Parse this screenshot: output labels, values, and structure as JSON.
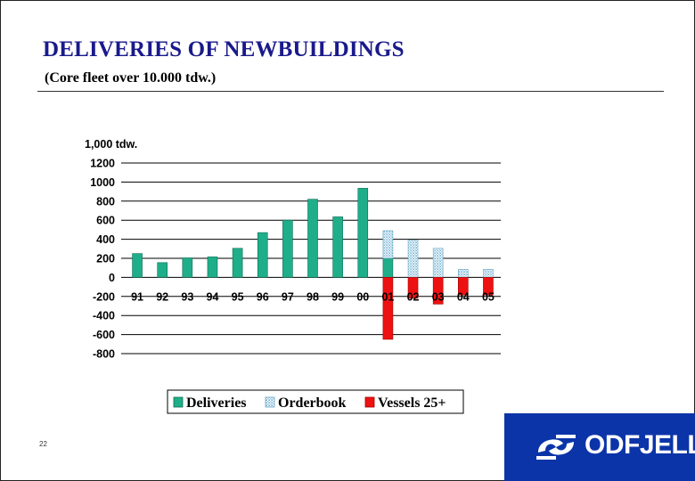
{
  "page": {
    "title": "DELIVERIES OF NEWBUILDINGS",
    "subtitle": "(Core fleet over 10.000 tdw.)",
    "page_number": "22"
  },
  "logo": {
    "text": "ODFJELL",
    "icon": "odfjell-logo-icon"
  },
  "colors": {
    "title": "#1a1a8c",
    "deliveries": "#1fae8a",
    "orderbook": "#a9d3e6",
    "vessels_25": "#ee1111",
    "logo_background": "#0b34a8"
  },
  "chart_data": {
    "type": "bar",
    "unit_label": "1,000 tdw.",
    "categories": [
      "91",
      "92",
      "93",
      "94",
      "95",
      "96",
      "97",
      "98",
      "99",
      "00",
      "01",
      "02",
      "03",
      "04",
      "05"
    ],
    "series": [
      {
        "name": "Deliveries",
        "values": [
          250,
          155,
          205,
          215,
          305,
          470,
          600,
          820,
          635,
          935,
          200,
          0,
          0,
          0,
          0
        ]
      },
      {
        "name": "Orderbook",
        "values": [
          0,
          0,
          0,
          0,
          0,
          0,
          0,
          0,
          0,
          0,
          290,
          390,
          305,
          85,
          85
        ]
      },
      {
        "name": "Vessels 25+",
        "values": [
          0,
          0,
          0,
          0,
          0,
          0,
          0,
          0,
          0,
          0,
          -650,
          -220,
          -280,
          -185,
          -185
        ]
      }
    ],
    "stacked": true,
    "yticks": [
      1200,
      1000,
      800,
      600,
      400,
      200,
      0,
      -200,
      -400,
      -600,
      -800
    ],
    "ylim": [
      -800,
      1200
    ],
    "grid": true,
    "legend": "bottom",
    "legend_entries": [
      "Deliveries",
      "Orderbook",
      "Vessels 25+"
    ]
  }
}
